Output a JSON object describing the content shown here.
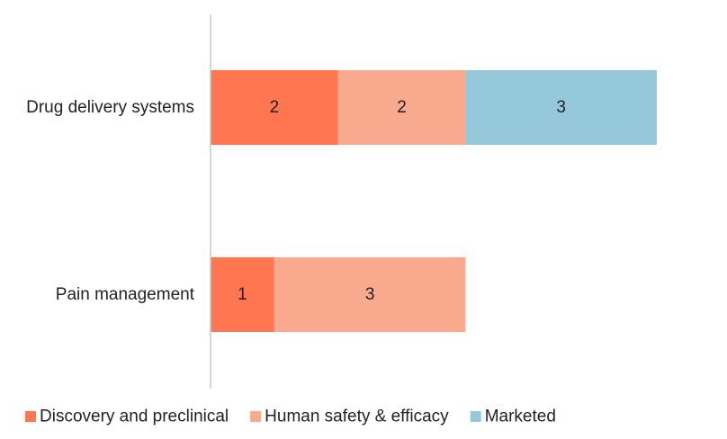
{
  "chart_data": {
    "type": "bar",
    "orientation": "horizontal",
    "stacked": true,
    "categories": [
      "Drug delivery systems",
      "Pain management"
    ],
    "series": [
      {
        "name": "Discovery and preclinical",
        "values": [
          2,
          1
        ],
        "color": "#FF7650"
      },
      {
        "name": "Human safety & efficacy",
        "values": [
          2,
          3
        ],
        "color": "#F9A98E"
      },
      {
        "name": "Marketed",
        "values": [
          3,
          0
        ],
        "color": "#96C8DC"
      }
    ],
    "xlim": [
      0,
      7
    ],
    "title": "",
    "xlabel": "",
    "ylabel": "",
    "grid": false,
    "legend": "bottom",
    "data_labels": true
  }
}
